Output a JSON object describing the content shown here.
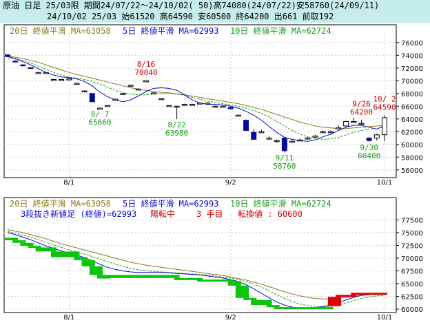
{
  "header": {
    "line1": "原油 日足 25/03限 期間24/07/22～24/10/02( 50)高74080(24/07/22)安58760(24/09/11)",
    "line2": "24/10/02 25/03 始61520 高64590 安60500 終64200 出661 前取192"
  },
  "colors": {
    "header_bg": "#c6ecec",
    "ma20": "#8b7a1a",
    "ma5": "#0a0acc",
    "ma10": "#169a16",
    "up": "#000000",
    "down": "#0a0a9a",
    "green_brick": "#0cc40c",
    "red_brick": "#e00000",
    "anno_red": "#cc0000",
    "anno_green": "#1a9a1a"
  },
  "chart_data": [
    {
      "type": "candlestick",
      "legend": {
        "ma20": "20日 終値平滑 MA=63058",
        "ma5": "5日 終値平滑 MA=62993",
        "ma10": "10日 終値平滑 MA=62724"
      },
      "y_ticks": [
        56000,
        58000,
        60000,
        62000,
        64000,
        66000,
        68000,
        70000,
        72000,
        74000,
        76000
      ],
      "ylim": [
        55000,
        77500
      ],
      "x_ticks": [
        {
          "label": "8/1",
          "index": 8
        },
        {
          "label": "9/2",
          "index": 29
        },
        {
          "label": "10/1",
          "index": 49
        }
      ],
      "candles": [
        {
          "date": "07/22",
          "o": 74080,
          "h": 74080,
          "l": 73700,
          "c": 73800
        },
        {
          "date": "07/23",
          "o": 73100,
          "h": 73200,
          "l": 72900,
          "c": 73000
        },
        {
          "date": "07/24",
          "o": 72500,
          "h": 72600,
          "l": 72300,
          "c": 72400
        },
        {
          "date": "07/25",
          "o": 72100,
          "h": 72200,
          "l": 72000,
          "c": 72100
        },
        {
          "date": "07/26",
          "o": 71300,
          "h": 71400,
          "l": 71200,
          "c": 71300
        },
        {
          "date": "07/29",
          "o": 71300,
          "h": 71400,
          "l": 71200,
          "c": 71300
        },
        {
          "date": "07/30",
          "o": 70200,
          "h": 70300,
          "l": 70100,
          "c": 70200
        },
        {
          "date": "07/31",
          "o": 70200,
          "h": 70300,
          "l": 70100,
          "c": 70200
        },
        {
          "date": "08/01",
          "o": 70300,
          "h": 70400,
          "l": 70200,
          "c": 70300
        },
        {
          "date": "08/02",
          "o": 69600,
          "h": 69700,
          "l": 69500,
          "c": 69600
        },
        {
          "date": "08/05",
          "o": 68400,
          "h": 68500,
          "l": 68300,
          "c": 68400
        },
        {
          "date": "08/06",
          "o": 68000,
          "h": 68100,
          "l": 66700,
          "c": 66700
        },
        {
          "date": "08/07",
          "o": 65700,
          "h": 65800,
          "l": 65660,
          "c": 65700
        },
        {
          "date": "08/08",
          "o": 66100,
          "h": 66200,
          "l": 66000,
          "c": 66100
        },
        {
          "date": "08/09",
          "o": 67100,
          "h": 67200,
          "l": 67000,
          "c": 67100
        },
        {
          "date": "08/13",
          "o": 68000,
          "h": 68100,
          "l": 67900,
          "c": 68000
        },
        {
          "date": "08/14",
          "o": 69300,
          "h": 69400,
          "l": 69200,
          "c": 69300
        },
        {
          "date": "08/15",
          "o": 68700,
          "h": 68800,
          "l": 68600,
          "c": 68700
        },
        {
          "date": "08/16",
          "o": 70000,
          "h": 70040,
          "l": 69900,
          "c": 70000
        },
        {
          "date": "08/19",
          "o": 68100,
          "h": 68200,
          "l": 68000,
          "c": 68100
        },
        {
          "date": "08/20",
          "o": 67200,
          "h": 67300,
          "l": 67100,
          "c": 67200
        },
        {
          "date": "08/21",
          "o": 66100,
          "h": 66200,
          "l": 66000,
          "c": 66100
        },
        {
          "date": "08/22",
          "o": 66000,
          "h": 66100,
          "l": 63980,
          "c": 66000
        },
        {
          "date": "08/23",
          "o": 66300,
          "h": 66400,
          "l": 66200,
          "c": 66300
        },
        {
          "date": "08/26",
          "o": 66300,
          "h": 66400,
          "l": 66200,
          "c": 66300
        },
        {
          "date": "08/27",
          "o": 66500,
          "h": 66600,
          "l": 66400,
          "c": 66500
        },
        {
          "date": "08/28",
          "o": 66500,
          "h": 66600,
          "l": 66400,
          "c": 66500
        },
        {
          "date": "08/29",
          "o": 66000,
          "h": 66100,
          "l": 65900,
          "c": 66000
        },
        {
          "date": "08/30",
          "o": 66000,
          "h": 66100,
          "l": 65900,
          "c": 66000
        },
        {
          "date": "09/02",
          "o": 65800,
          "h": 65900,
          "l": 65500,
          "c": 65600
        },
        {
          "date": "09/03",
          "o": 64600,
          "h": 64700,
          "l": 64500,
          "c": 64600
        },
        {
          "date": "09/04",
          "o": 63800,
          "h": 63900,
          "l": 62200,
          "c": 62200
        },
        {
          "date": "09/05",
          "o": 61900,
          "h": 62400,
          "l": 60700,
          "c": 60800
        },
        {
          "date": "09/06",
          "o": 62000,
          "h": 62300,
          "l": 61800,
          "c": 62000
        },
        {
          "date": "09/09",
          "o": 61000,
          "h": 61300,
          "l": 60700,
          "c": 61000
        },
        {
          "date": "09/10",
          "o": 60600,
          "h": 60800,
          "l": 60300,
          "c": 60600
        },
        {
          "date": "09/11",
          "o": 61000,
          "h": 61200,
          "l": 58760,
          "c": 59000
        },
        {
          "date": "09/12",
          "o": 60500,
          "h": 60700,
          "l": 60300,
          "c": 60500
        },
        {
          "date": "09/13",
          "o": 60700,
          "h": 60900,
          "l": 60500,
          "c": 60700
        },
        {
          "date": "09/17",
          "o": 61000,
          "h": 61200,
          "l": 60800,
          "c": 61000
        },
        {
          "date": "09/18",
          "o": 61300,
          "h": 61500,
          "l": 61100,
          "c": 61300
        },
        {
          "date": "09/19",
          "o": 62000,
          "h": 62200,
          "l": 61800,
          "c": 62000
        },
        {
          "date": "09/20",
          "o": 62000,
          "h": 62200,
          "l": 61800,
          "c": 62000
        },
        {
          "date": "09/24",
          "o": 62600,
          "h": 63000,
          "l": 62400,
          "c": 62600
        },
        {
          "date": "09/25",
          "o": 62900,
          "h": 63700,
          "l": 62700,
          "c": 63600
        },
        {
          "date": "09/26",
          "o": 63600,
          "h": 64200,
          "l": 63400,
          "c": 63600
        },
        {
          "date": "09/27",
          "o": 63300,
          "h": 63800,
          "l": 63100,
          "c": 63300
        },
        {
          "date": "09/30",
          "o": 61000,
          "h": 61200,
          "l": 60400,
          "c": 60600
        },
        {
          "date": "10/01",
          "o": 61000,
          "h": 61700,
          "l": 60600,
          "c": 61500
        },
        {
          "date": "10/02",
          "o": 61520,
          "h": 64590,
          "l": 60500,
          "c": 64200
        }
      ],
      "ma5": [
        73800,
        73500,
        73000,
        72500,
        71900,
        71300,
        70900,
        70600,
        70500,
        70300,
        69900,
        69200,
        68200,
        67500,
        67000,
        66700,
        67000,
        67600,
        68300,
        68800,
        68900,
        68800,
        68500,
        67800,
        67000,
        66500,
        66300,
        66300,
        66200,
        66000,
        65700,
        65200,
        64600,
        63800,
        62800,
        61900,
        61100,
        60800,
        60600,
        60500,
        60700,
        61200,
        61600,
        62200,
        62700,
        63000,
        63000,
        62700,
        62400,
        62993
      ],
      "ma10": [
        73600,
        73400,
        73200,
        72800,
        72300,
        71800,
        71300,
        70900,
        70600,
        70400,
        70200,
        69900,
        69500,
        69000,
        68500,
        68100,
        67900,
        67800,
        67800,
        67900,
        68000,
        68000,
        67900,
        67700,
        67400,
        67100,
        66800,
        66600,
        66400,
        66200,
        66000,
        65700,
        65300,
        64900,
        64300,
        63600,
        62900,
        62200,
        61600,
        61200,
        60900,
        60800,
        60900,
        61100,
        61500,
        61900,
        62200,
        62400,
        62500,
        62724
      ],
      "ma20": [
        73900,
        73700,
        73500,
        73200,
        72900,
        72500,
        72100,
        71700,
        71300,
        71000,
        70700,
        70400,
        70100,
        69800,
        69500,
        69200,
        68900,
        68700,
        68500,
        68300,
        68200,
        68100,
        67900,
        67800,
        67600,
        67400,
        67200,
        67000,
        66800,
        66600,
        66400,
        66100,
        65800,
        65500,
        65100,
        64700,
        64300,
        63900,
        63500,
        63200,
        62900,
        62700,
        62600,
        62500,
        62500,
        62600,
        62700,
        62800,
        62900,
        63058
      ],
      "annotations": [
        {
          "text": "8/16",
          "index": 18,
          "kind": "high"
        },
        {
          "text": "70040",
          "index": 18,
          "kind": "high"
        },
        {
          "text": "8/ 7",
          "index": 12,
          "kind": "low"
        },
        {
          "text": "65660",
          "index": 12,
          "kind": "low"
        },
        {
          "text": "8/22",
          "index": 22,
          "kind": "low"
        },
        {
          "text": "63980",
          "index": 22,
          "kind": "low"
        },
        {
          "text": "9/11",
          "index": 36,
          "kind": "low"
        },
        {
          "text": "58760",
          "index": 36,
          "kind": "low"
        },
        {
          "text": "9/26",
          "index": 46,
          "kind": "high"
        },
        {
          "text": "64200",
          "index": 46,
          "kind": "high"
        },
        {
          "text": "10/ 2",
          "index": 49,
          "kind": "high"
        },
        {
          "text": "64590",
          "index": 49,
          "kind": "high"
        },
        {
          "text": "9/30",
          "index": 47,
          "kind": "low"
        },
        {
          "text": "60400",
          "index": 47,
          "kind": "low"
        }
      ]
    },
    {
      "type": "three-line-break",
      "legend": {
        "ma20": "20日 終値平滑 MA=63058",
        "ma5": "5日 終値平滑 MA=62993",
        "ma10": "10日 終値平滑 MA=62724"
      },
      "status": {
        "title": "3段抜き新値足 (終値)=62993",
        "state": "陽転中",
        "count": "3 手目",
        "switch_label": "転換値 : 60600"
      },
      "y_ticks": [
        60000,
        62500,
        65000,
        67500,
        70000,
        72500,
        75000,
        77500
      ],
      "ylim": [
        59600,
        78500
      ],
      "x_ticks": [
        {
          "label": "8/1",
          "index": 8
        },
        {
          "label": "9/2",
          "index": 29
        },
        {
          "label": "10/1",
          "index": 49
        }
      ],
      "bricks": [
        {
          "from": 74000,
          "to": 73500,
          "start": 0,
          "end": 1,
          "color": "green"
        },
        {
          "from": 73500,
          "to": 73000,
          "start": 1,
          "end": 2,
          "color": "green"
        },
        {
          "from": 73000,
          "to": 72400,
          "start": 2,
          "end": 3,
          "color": "green"
        },
        {
          "from": 72400,
          "to": 72100,
          "start": 3,
          "end": 4,
          "color": "green"
        },
        {
          "from": 72100,
          "to": 71300,
          "start": 4,
          "end": 6,
          "color": "green"
        },
        {
          "from": 71300,
          "to": 70200,
          "start": 6,
          "end": 9,
          "color": "green"
        },
        {
          "from": 70200,
          "to": 69600,
          "start": 9,
          "end": 10,
          "color": "green"
        },
        {
          "from": 69600,
          "to": 68400,
          "start": 10,
          "end": 11,
          "color": "green"
        },
        {
          "from": 68400,
          "to": 66700,
          "start": 11,
          "end": 12,
          "color": "green"
        },
        {
          "from": 66700,
          "to": 66000,
          "start": 12,
          "end": 13,
          "color": "green"
        },
        {
          "from": 66700,
          "to": 66100,
          "start": 13,
          "end": 22,
          "color": "green"
        },
        {
          "from": 66100,
          "to": 65800,
          "start": 22,
          "end": 25,
          "color": "green"
        },
        {
          "from": 65800,
          "to": 65500,
          "start": 25,
          "end": 29,
          "color": "green"
        },
        {
          "from": 65500,
          "to": 64600,
          "start": 29,
          "end": 30,
          "color": "green"
        },
        {
          "from": 64600,
          "to": 62200,
          "start": 30,
          "end": 31,
          "color": "green"
        },
        {
          "from": 62200,
          "to": 61800,
          "start": 31,
          "end": 32,
          "color": "green"
        },
        {
          "from": 61800,
          "to": 60800,
          "start": 32,
          "end": 34,
          "color": "green"
        },
        {
          "from": 60800,
          "to": 60400,
          "start": 34,
          "end": 35,
          "color": "green"
        },
        {
          "from": 60400,
          "to": 60000,
          "start": 35,
          "end": 42,
          "color": "green"
        },
        {
          "from": 60600,
          "to": 62400,
          "start": 42,
          "end": 43,
          "color": "red"
        },
        {
          "from": 62400,
          "to": 62800,
          "start": 43,
          "end": 45,
          "color": "red"
        },
        {
          "from": 62800,
          "to": 63200,
          "start": 45,
          "end": 49,
          "color": "red"
        }
      ],
      "ma5": [
        75000,
        74600,
        74100,
        73600,
        73000,
        72400,
        71900,
        71400,
        71000,
        70600,
        70100,
        69500,
        68800,
        68200,
        67800,
        67500,
        67300,
        67200,
        67200,
        67200,
        67200,
        67100,
        67000,
        66900,
        66800,
        66700,
        66500,
        66300,
        66100,
        65800,
        65400,
        64800,
        64000,
        63100,
        62200,
        61400,
        60800,
        60400,
        60200,
        60200,
        60300,
        60500,
        60800,
        61300,
        61800,
        62300,
        62700,
        62900,
        63000,
        62993
      ],
      "ma10": [
        75200,
        74900,
        74500,
        74100,
        73600,
        73100,
        72600,
        72100,
        71600,
        71200,
        70800,
        70300,
        69800,
        69300,
        68800,
        68400,
        68000,
        67700,
        67500,
        67400,
        67300,
        67200,
        67100,
        67000,
        66900,
        66800,
        66700,
        66500,
        66300,
        66100,
        65800,
        65400,
        64900,
        64300,
        63600,
        62800,
        62100,
        61500,
        61000,
        60700,
        60500,
        60400,
        60500,
        60800,
        61200,
        61700,
        62100,
        62400,
        62600,
        62724
      ],
      "ma20": [
        75600,
        75300,
        75000,
        74600,
        74200,
        73800,
        73300,
        72800,
        72400,
        72000,
        71600,
        71200,
        70800,
        70400,
        70000,
        69600,
        69200,
        68900,
        68600,
        68400,
        68200,
        68000,
        67800,
        67600,
        67400,
        67200,
        67000,
        66800,
        66600,
        66300,
        66000,
        65700,
        65300,
        64900,
        64400,
        63900,
        63400,
        63000,
        62600,
        62300,
        62100,
        62000,
        62000,
        62100,
        62300,
        62500,
        62700,
        62800,
        62900,
        63058
      ]
    }
  ]
}
